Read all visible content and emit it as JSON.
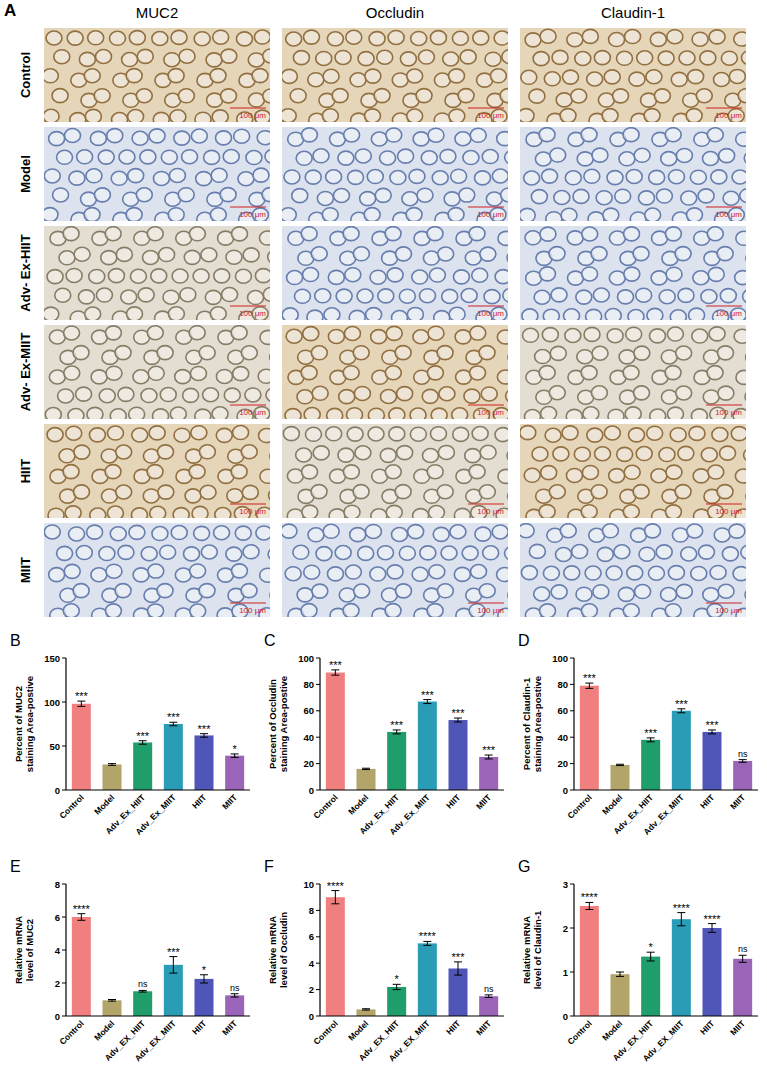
{
  "panel_a": {
    "label": "A",
    "columns": [
      "MUC2",
      "Occludin",
      "Claudin-1"
    ],
    "rows": [
      "Control",
      "Model",
      "Adv- Ex-HIIT",
      "Adv- Ex-MIIT",
      "HIIT",
      "MIIT"
    ],
    "scale_bar": "100 μm"
  },
  "chart_data": [
    {
      "type": "bar",
      "panel": "B",
      "ylabel": "Percent of MUC2 staining Area-postive",
      "categories": [
        "Control",
        "Model",
        "Adv_Ex_HIIT",
        "Adv_Ex_MIIT",
        "HIIT",
        "MIIT"
      ],
      "values": [
        98,
        29,
        54,
        75,
        62,
        39
      ],
      "errors": [
        3,
        1,
        2,
        2,
        2,
        2
      ],
      "annotations": [
        "***",
        null,
        "***",
        "***",
        "***",
        "*"
      ],
      "colors": [
        "#f08080",
        "#b3a46a",
        "#1f9e6c",
        "#2a9cb6",
        "#4f56b8",
        "#9a64b8"
      ],
      "ylim": [
        0,
        150
      ],
      "yticks": [
        0,
        50,
        100,
        150
      ]
    },
    {
      "type": "bar",
      "panel": "C",
      "ylabel": "Percent of Occludin staining Area-postive",
      "categories": [
        "Control",
        "Model",
        "Adv_Ex_HIIT",
        "Adv_Ex_MIIT",
        "HIIT",
        "MIIT"
      ],
      "values": [
        89,
        16,
        44,
        67,
        53,
        25
      ],
      "errors": [
        2,
        0.5,
        1.5,
        1.5,
        1.5,
        1.5
      ],
      "annotations": [
        "***",
        null,
        "***",
        "***",
        "***",
        "***"
      ],
      "colors": [
        "#f08080",
        "#b3a46a",
        "#1f9e6c",
        "#2a9cb6",
        "#4f56b8",
        "#9a64b8"
      ],
      "ylim": [
        0,
        100
      ],
      "yticks": [
        0,
        20,
        40,
        60,
        80,
        100
      ]
    },
    {
      "type": "bar",
      "panel": "D",
      "ylabel": "Percent of Claudin-1 staining Area-postive",
      "categories": [
        "Control",
        "Model",
        "Adv_Ex_HIIT",
        "Adv_Ex_MIIT",
        "HIIT",
        "MIIT"
      ],
      "values": [
        79,
        19,
        38,
        60,
        44,
        22
      ],
      "errors": [
        2,
        0.5,
        1.5,
        1.5,
        1.5,
        1
      ],
      "annotations": [
        "***",
        null,
        "***",
        "***",
        "***",
        "ns"
      ],
      "colors": [
        "#f08080",
        "#b3a46a",
        "#1f9e6c",
        "#2a9cb6",
        "#4f56b8",
        "#9a64b8"
      ],
      "ylim": [
        0,
        100
      ],
      "yticks": [
        0,
        20,
        40,
        60,
        80,
        100
      ]
    },
    {
      "type": "bar",
      "panel": "E",
      "ylabel": "Relative mRNA level of MUC2",
      "categories": [
        "Control",
        "Model",
        "Adv_EX_HIIT",
        "Adv_EX_MIIT",
        "HIIT",
        "MIIT"
      ],
      "values": [
        6.0,
        0.95,
        1.5,
        3.1,
        2.25,
        1.25
      ],
      "errors": [
        0.2,
        0.05,
        0.05,
        0.5,
        0.25,
        0.1
      ],
      "annotations": [
        "****",
        null,
        "ns",
        "***",
        "*",
        "ns"
      ],
      "colors": [
        "#f08080",
        "#b3a46a",
        "#1f9e6c",
        "#2a9cb6",
        "#4f56b8",
        "#9a64b8"
      ],
      "ylim": [
        0,
        8
      ],
      "yticks": [
        0,
        2,
        4,
        6,
        8
      ]
    },
    {
      "type": "bar",
      "panel": "F",
      "ylabel": "Relative mRNA level of Occludin",
      "categories": [
        "Control",
        "Model",
        "Adv_EX_HIIT",
        "Adv_EX_MIIT",
        "HIIT",
        "MIIT"
      ],
      "values": [
        9.0,
        0.5,
        2.2,
        5.5,
        3.6,
        1.5
      ],
      "errors": [
        0.5,
        0.05,
        0.2,
        0.15,
        0.5,
        0.1
      ],
      "annotations": [
        "****",
        null,
        "*",
        "****",
        "***",
        "ns"
      ],
      "colors": [
        "#f08080",
        "#b3a46a",
        "#1f9e6c",
        "#2a9cb6",
        "#4f56b8",
        "#9a64b8"
      ],
      "ylim": [
        0,
        10
      ],
      "yticks": [
        0,
        2,
        4,
        6,
        8,
        10
      ]
    },
    {
      "type": "bar",
      "panel": "G",
      "ylabel": "Relative mRNA level of Claudin-1",
      "categories": [
        "Control",
        "Model",
        "Adv_EX_HIIT",
        "Adv_EX_MIIT",
        "HIIT",
        "MIIT"
      ],
      "values": [
        2.5,
        0.95,
        1.35,
        2.2,
        2.0,
        1.3
      ],
      "errors": [
        0.08,
        0.05,
        0.1,
        0.15,
        0.1,
        0.08
      ],
      "annotations": [
        "****",
        null,
        "*",
        "****",
        "****",
        "ns"
      ],
      "colors": [
        "#f08080",
        "#b3a46a",
        "#1f9e6c",
        "#2a9cb6",
        "#4f56b8",
        "#9a64b8"
      ],
      "ylim": [
        0,
        3
      ],
      "yticks": [
        0,
        1,
        2,
        3
      ]
    }
  ]
}
